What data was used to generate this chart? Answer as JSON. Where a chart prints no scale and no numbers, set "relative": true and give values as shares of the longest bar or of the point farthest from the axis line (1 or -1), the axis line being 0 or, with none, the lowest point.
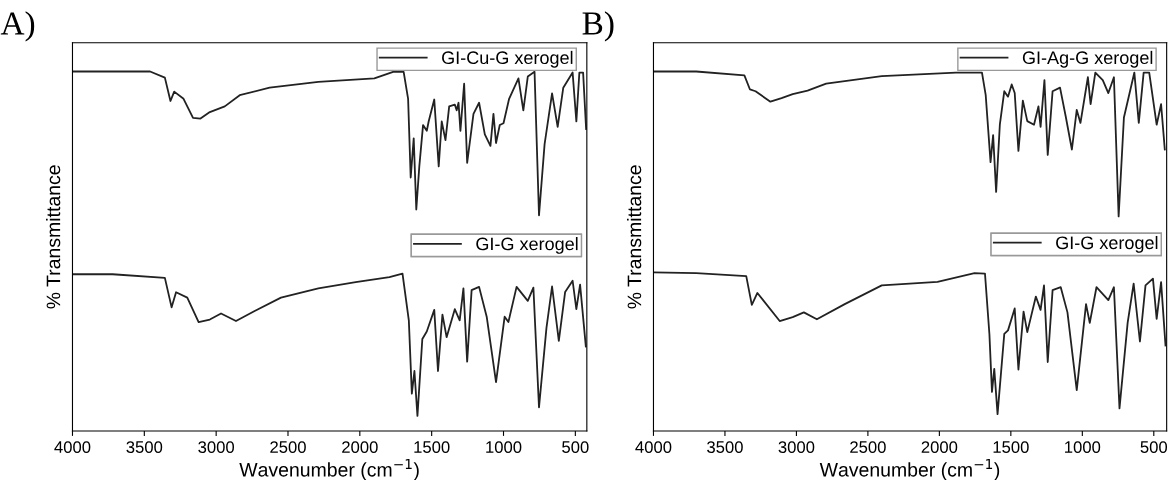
{
  "chart_data": [
    {
      "type": "line",
      "title": "A)",
      "xlabel": "Wavenumber (cm$^{−1}$)",
      "ylabel": "% Transmittance",
      "relative": true,
      "xlim": [
        4000,
        420
      ],
      "xticks": [
        4000,
        3500,
        3000,
        2500,
        2000,
        1500,
        1000,
        500
      ],
      "tick_labels": "x",
      "legend": "right",
      "marker": "none",
      "line_style": "solid",
      "series": [
        {
          "name": "GI-Cu-G xerogel",
          "color": "#222222",
          "x": [
            4000,
            3460,
            3357,
            3318,
            3292,
            3227,
            3161,
            3109,
            3044,
            2940,
            2836,
            2628,
            2289,
            1899,
            1768,
            1695,
            1664,
            1646,
            1625,
            1607,
            1586,
            1560,
            1534,
            1521,
            1482,
            1451,
            1430,
            1404,
            1378,
            1339,
            1326,
            1313,
            1300,
            1274,
            1253,
            1209,
            1170,
            1130,
            1091,
            1070,
            1052,
            1026,
            1000,
            961,
            896,
            862,
            831,
            784,
            753,
            714,
            662,
            623,
            584,
            519,
            493,
            472,
            446,
            425
          ],
          "values": [
            1.0,
            1.0,
            0.983,
            0.918,
            0.944,
            0.924,
            0.871,
            0.869,
            0.887,
            0.903,
            0.934,
            0.955,
            0.971,
            0.981,
            0.999,
            0.999,
            0.924,
            0.705,
            0.814,
            0.616,
            0.736,
            0.851,
            0.835,
            0.861,
            0.922,
            0.736,
            0.861,
            0.809,
            0.903,
            0.908,
            0.892,
            0.913,
            0.835,
            0.966,
            0.746,
            0.882,
            0.913,
            0.825,
            0.793,
            0.882,
            0.801,
            0.851,
            0.856,
            0.924,
            0.981,
            0.892,
            0.986,
            0.999,
            0.6,
            0.798,
            0.939,
            0.846,
            0.955,
            0.997,
            0.861,
            0.997,
            0.997,
            0.84
          ]
        },
        {
          "name": "GI-G xerogel",
          "color": "#222222",
          "x": [
            4000,
            3721,
            3357,
            3310,
            3279,
            3201,
            3122,
            3044,
            2966,
            2862,
            2732,
            2549,
            2289,
            2029,
            1794,
            1703,
            1659,
            1638,
            1620,
            1599,
            1565,
            1534,
            1482,
            1456,
            1425,
            1396,
            1339,
            1305,
            1279,
            1253,
            1222,
            1170,
            1117,
            1052,
            992,
            966,
            909,
            831,
            792,
            753,
            701,
            662,
            615,
            571,
            519,
            493,
            467,
            427
          ],
          "values": [
            0.436,
            0.436,
            0.426,
            0.344,
            0.386,
            0.371,
            0.303,
            0.31,
            0.327,
            0.306,
            0.334,
            0.371,
            0.397,
            0.414,
            0.428,
            0.438,
            0.308,
            0.104,
            0.167,
            0.042,
            0.256,
            0.277,
            0.337,
            0.167,
            0.324,
            0.261,
            0.339,
            0.308,
            0.397,
            0.193,
            0.392,
            0.401,
            0.318,
            0.136,
            0.318,
            0.303,
            0.401,
            0.362,
            0.399,
            0.066,
            0.287,
            0.402,
            0.251,
            0.387,
            0.418,
            0.339,
            0.407,
            0.235
          ]
        }
      ]
    },
    {
      "type": "line",
      "title": "B)",
      "xlabel": "Wavenumber (cm$^{−1}$)",
      "ylabel": "% Transmittance",
      "relative": true,
      "xlim": [
        4000,
        410
      ],
      "xticks": [
        4000,
        3500,
        3000,
        2500,
        2000,
        1500,
        1000,
        500
      ],
      "tick_labels": "x",
      "legend": "right",
      "marker": "none",
      "line_style": "solid",
      "series": [
        {
          "name": "GI-Ag-G xerogel",
          "color": "#222222",
          "x": [
            4000,
            3701,
            3364,
            3325,
            3286,
            3182,
            3104,
            3026,
            2922,
            2792,
            2403,
            1884,
            1702,
            1676,
            1642,
            1624,
            1603,
            1577,
            1546,
            1520,
            1494,
            1473,
            1447,
            1416,
            1385,
            1338,
            1307,
            1292,
            1265,
            1242,
            1208,
            1156,
            1117,
            1073,
            1039,
            1013,
            961,
            942,
            909,
            857,
            818,
            779,
            746,
            709,
            636,
            605,
            571,
            532,
            480,
            449,
            423
          ],
          "values": [
            1.0,
            1.0,
            0.989,
            0.95,
            0.945,
            0.916,
            0.926,
            0.937,
            0.947,
            0.966,
            0.987,
            0.997,
            0.997,
            0.935,
            0.748,
            0.823,
            0.665,
            0.852,
            0.945,
            0.93,
            0.964,
            0.94,
            0.779,
            0.919,
            0.862,
            0.852,
            0.903,
            0.846,
            0.976,
            0.768,
            0.945,
            0.955,
            0.877,
            0.783,
            0.893,
            0.857,
            0.984,
            0.909,
            0.997,
            0.976,
            0.94,
            0.984,
            0.597,
            0.872,
            0.997,
            0.857,
            0.997,
            0.997,
            0.852,
            0.909,
            0.783
          ]
        },
        {
          "name": "GI-G xerogel",
          "color": "#222222",
          "x": [
            4000,
            3701,
            3351,
            3312,
            3273,
            3117,
            3026,
            2948,
            2857,
            2662,
            2403,
            2013,
            1754,
            1681,
            1650,
            1632,
            1616,
            1593,
            1546,
            1520,
            1473,
            1447,
            1411,
            1385,
            1325,
            1292,
            1268,
            1242,
            1208,
            1151,
            1104,
            1039,
            974,
            948,
            901,
            818,
            779,
            740,
            683,
            641,
            597,
            558,
            506,
            480,
            449,
            418
          ],
          "values": [
            0.441,
            0.439,
            0.431,
            0.351,
            0.384,
            0.306,
            0.317,
            0.33,
            0.311,
            0.353,
            0.405,
            0.415,
            0.439,
            0.438,
            0.27,
            0.109,
            0.173,
            0.047,
            0.27,
            0.28,
            0.341,
            0.171,
            0.332,
            0.275,
            0.374,
            0.337,
            0.405,
            0.192,
            0.392,
            0.4,
            0.33,
            0.114,
            0.353,
            0.301,
            0.4,
            0.364,
            0.4,
            0.063,
            0.301,
            0.41,
            0.249,
            0.405,
            0.424,
            0.312,
            0.414,
            0.238
          ]
        }
      ]
    }
  ]
}
